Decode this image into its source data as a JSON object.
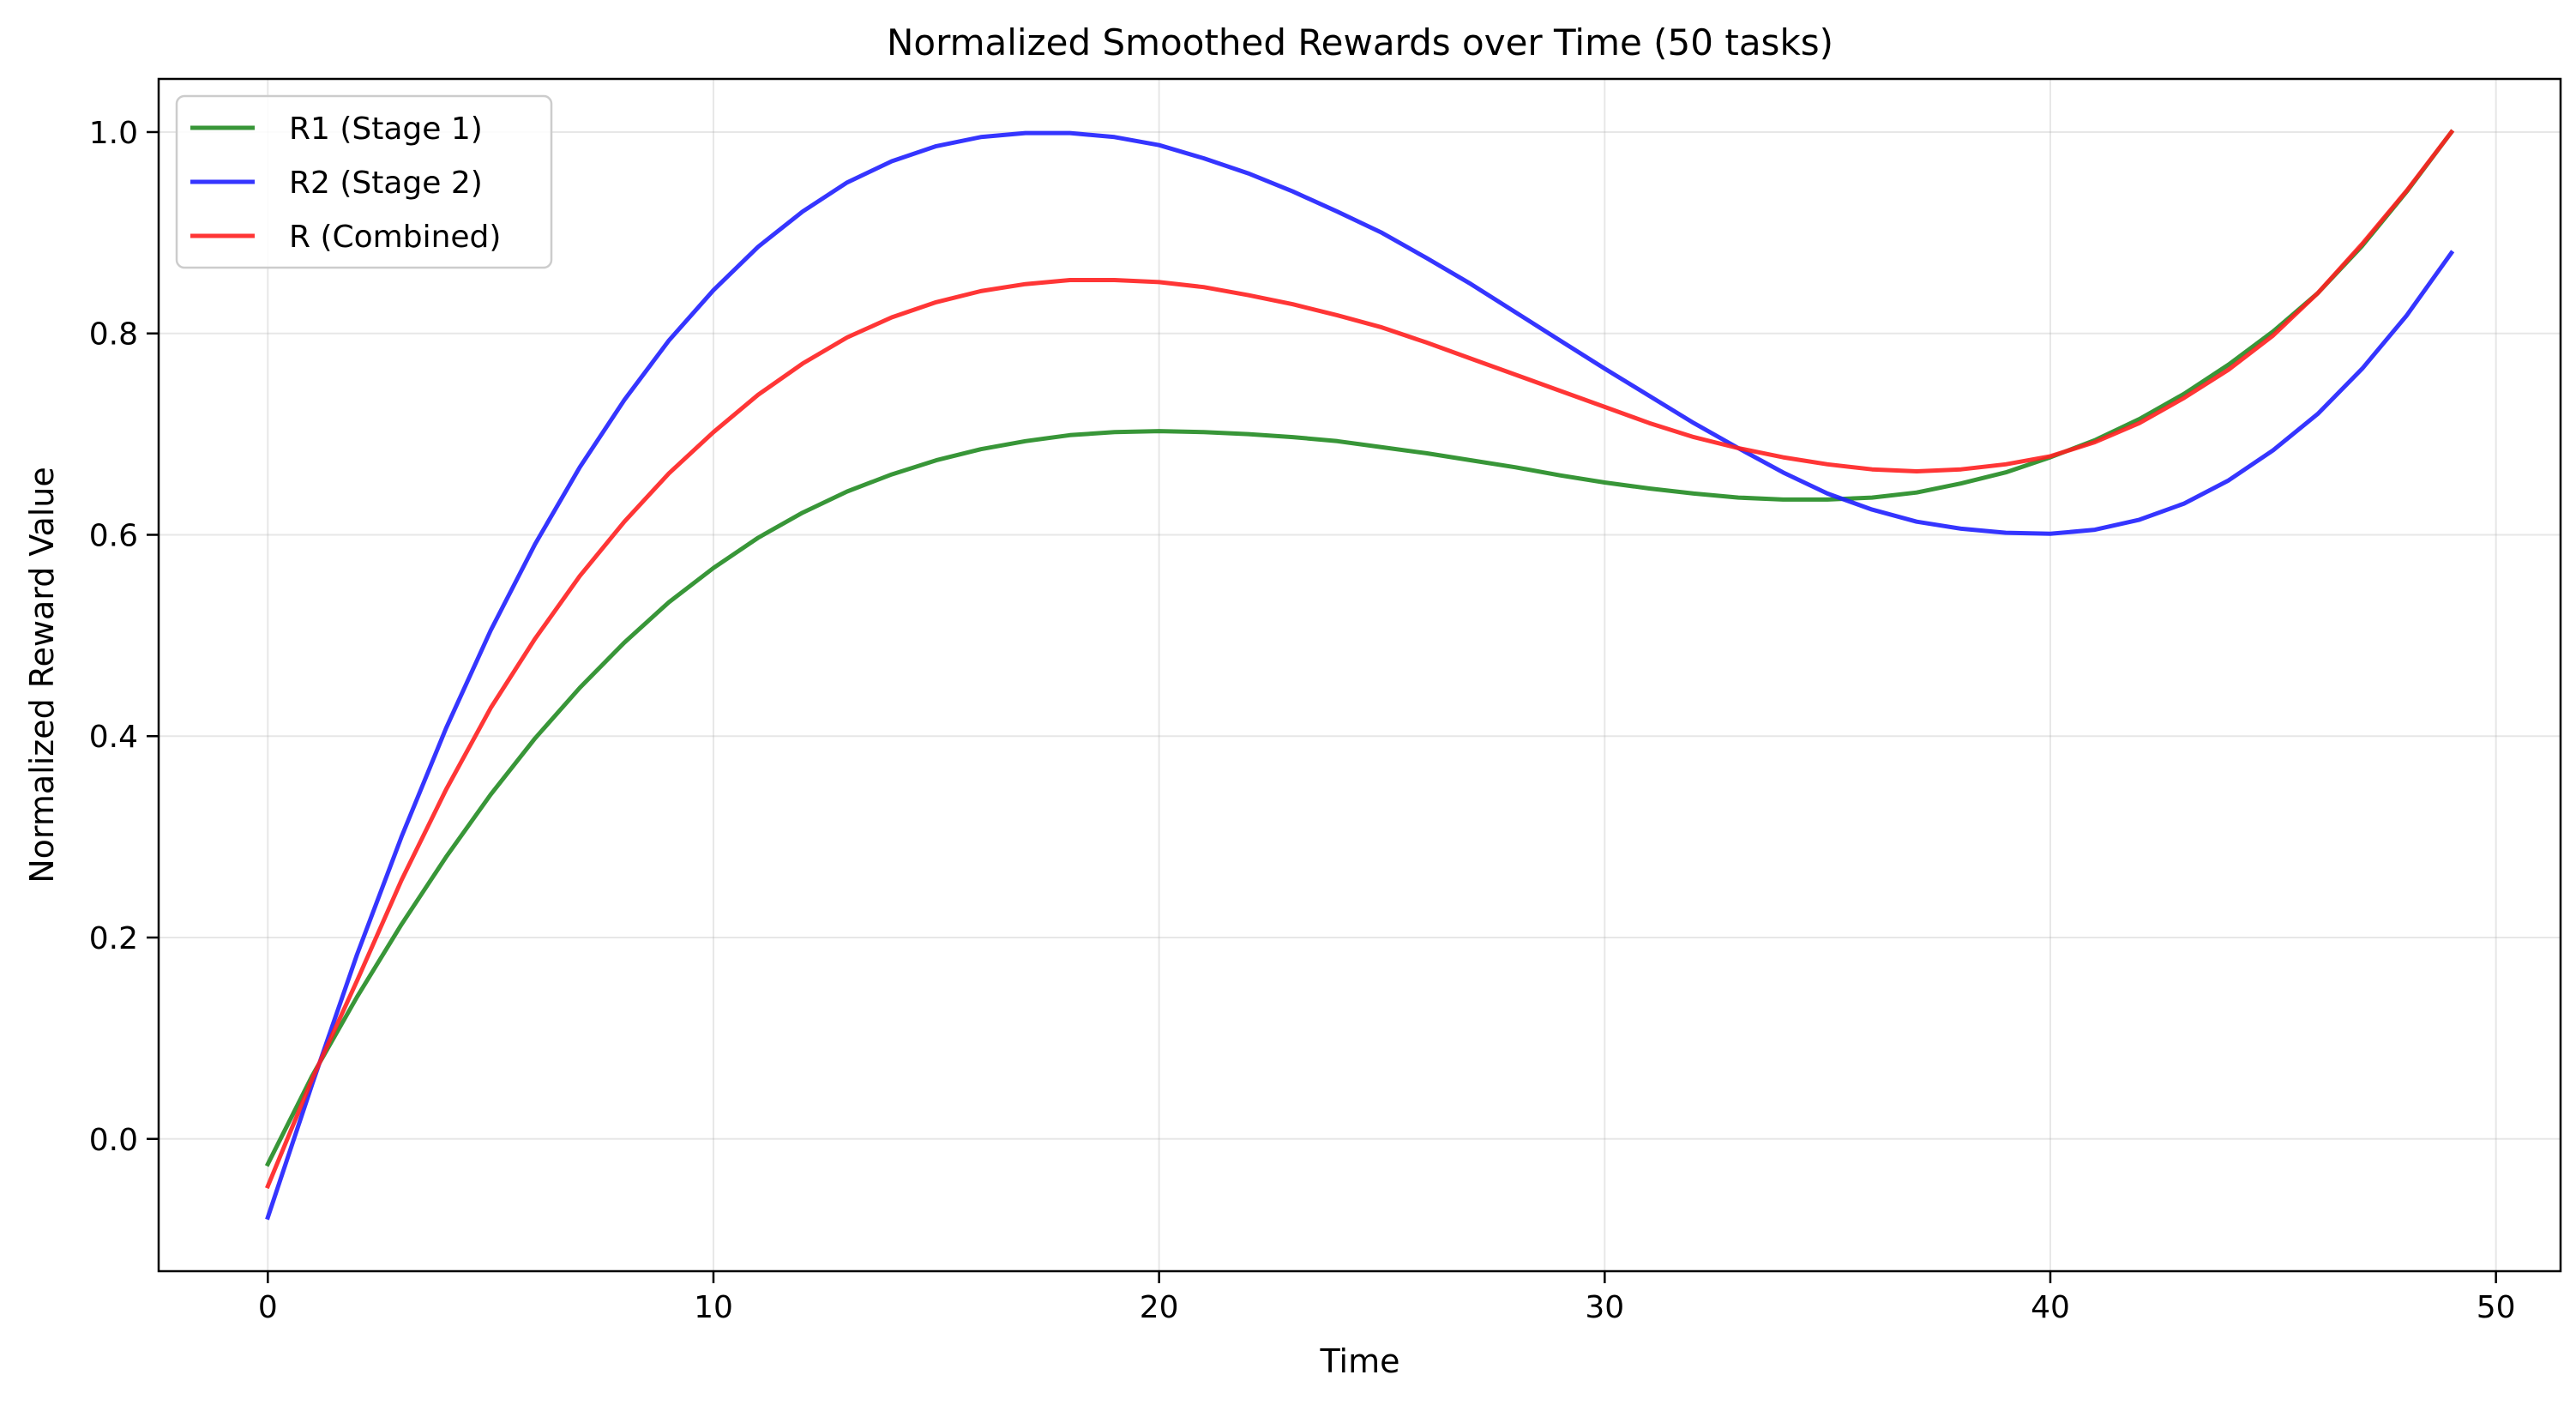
{
  "chart_data": {
    "type": "line",
    "title": "Normalized Smoothed Rewards over Time (50 tasks)",
    "xlabel": "Time",
    "ylabel": "Normalized Reward Value",
    "xlim": [
      -2.45,
      51.45
    ],
    "ylim": [
      -0.1314,
      1.0528
    ],
    "xticks": [
      0,
      10,
      20,
      30,
      40,
      50
    ],
    "xtick_labels": [
      "0",
      "10",
      "20",
      "30",
      "40",
      "50"
    ],
    "yticks": [
      0.0,
      0.2,
      0.4,
      0.6,
      0.8,
      1.0
    ],
    "ytick_labels": [
      "0.0",
      "0.2",
      "0.4",
      "0.6",
      "0.8",
      "1.0"
    ],
    "grid": true,
    "legend": "upper left",
    "x": [
      0,
      1,
      2,
      3,
      4,
      5,
      6,
      7,
      8,
      9,
      10,
      11,
      12,
      13,
      14,
      15,
      16,
      17,
      18,
      19,
      20,
      21,
      22,
      23,
      24,
      25,
      26,
      27,
      28,
      29,
      30,
      31,
      32,
      33,
      34,
      35,
      36,
      37,
      38,
      39,
      40,
      41,
      42,
      43,
      44,
      45,
      46,
      47,
      48,
      49
    ],
    "series": [
      {
        "name": "R1 (Stage 1)",
        "color": "#228B22",
        "values": [
          -0.025,
          0.063,
          0.141,
          0.213,
          0.28,
          0.342,
          0.398,
          0.448,
          0.493,
          0.533,
          0.567,
          0.597,
          0.622,
          0.643,
          0.66,
          0.674,
          0.685,
          0.693,
          0.699,
          0.702,
          0.703,
          0.702,
          0.7,
          0.697,
          0.693,
          0.687,
          0.681,
          0.674,
          0.667,
          0.659,
          0.652,
          0.646,
          0.641,
          0.637,
          0.635,
          0.635,
          0.637,
          0.642,
          0.651,
          0.662,
          0.677,
          0.694,
          0.715,
          0.74,
          0.769,
          0.802,
          0.84,
          0.887,
          0.941,
          1.0
        ]
      },
      {
        "name": "R2 (Stage 2)",
        "color": "#1F1FFF",
        "values": [
          -0.078,
          0.055,
          0.183,
          0.3,
          0.408,
          0.505,
          0.591,
          0.667,
          0.734,
          0.793,
          0.843,
          0.886,
          0.921,
          0.95,
          0.971,
          0.986,
          0.995,
          0.999,
          0.999,
          0.995,
          0.987,
          0.974,
          0.959,
          0.941,
          0.921,
          0.9,
          0.875,
          0.849,
          0.821,
          0.793,
          0.765,
          0.738,
          0.711,
          0.686,
          0.662,
          0.641,
          0.625,
          0.613,
          0.606,
          0.602,
          0.601,
          0.605,
          0.615,
          0.631,
          0.654,
          0.684,
          0.72,
          0.765,
          0.818,
          0.88
        ]
      },
      {
        "name": "R (Combined)",
        "color": "#FF2020",
        "values": [
          -0.047,
          0.06,
          0.157,
          0.257,
          0.347,
          0.428,
          0.497,
          0.559,
          0.613,
          0.661,
          0.702,
          0.739,
          0.77,
          0.796,
          0.816,
          0.831,
          0.842,
          0.849,
          0.853,
          0.853,
          0.851,
          0.846,
          0.838,
          0.829,
          0.818,
          0.806,
          0.791,
          0.775,
          0.759,
          0.743,
          0.727,
          0.711,
          0.697,
          0.686,
          0.677,
          0.67,
          0.665,
          0.663,
          0.665,
          0.67,
          0.678,
          0.692,
          0.711,
          0.736,
          0.764,
          0.798,
          0.84,
          0.889,
          0.942,
          1.0
        ]
      }
    ]
  }
}
